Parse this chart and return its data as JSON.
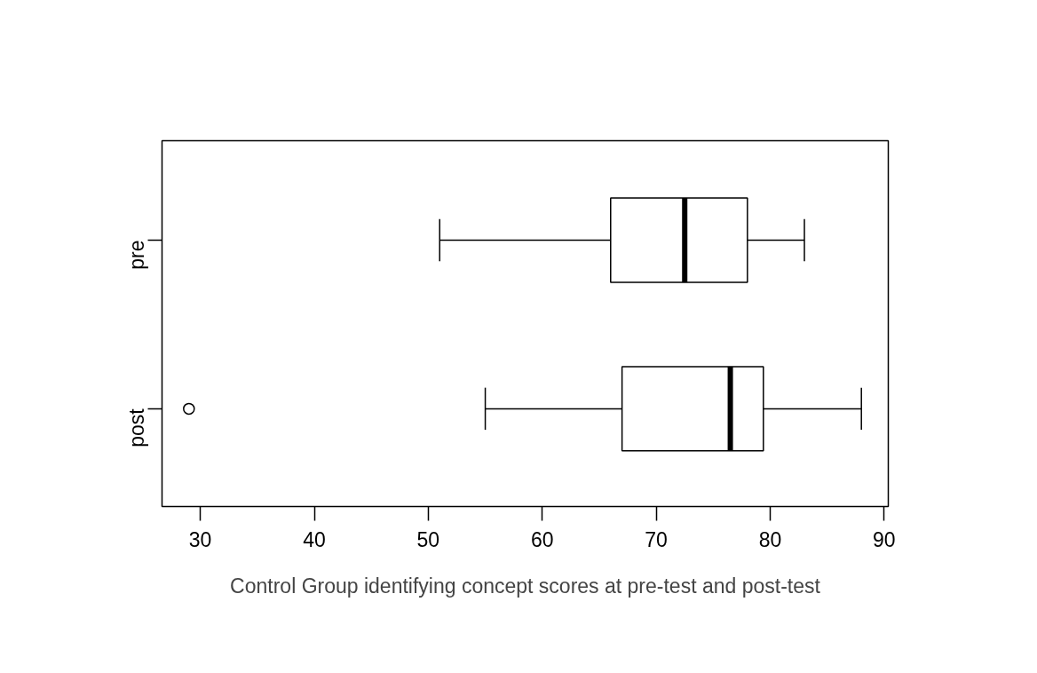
{
  "chart_data": {
    "type": "box",
    "orientation": "horizontal",
    "xlabel": "Control Group identifying concept scores at pre-test and post-test",
    "categories": [
      "pre",
      "post"
    ],
    "boxes": [
      {
        "low": 51,
        "q1": 66,
        "median": 72.5,
        "q3": 78,
        "high": 83
      },
      {
        "low": 55,
        "q1": 67,
        "median": 76.5,
        "q3": 79.4,
        "high": 88,
        "outliers": [
          29
        ]
      }
    ],
    "xlim": [
      26.64,
      90.36
    ],
    "xticks": [
      30,
      40,
      50,
      60,
      70,
      80,
      90
    ]
  }
}
